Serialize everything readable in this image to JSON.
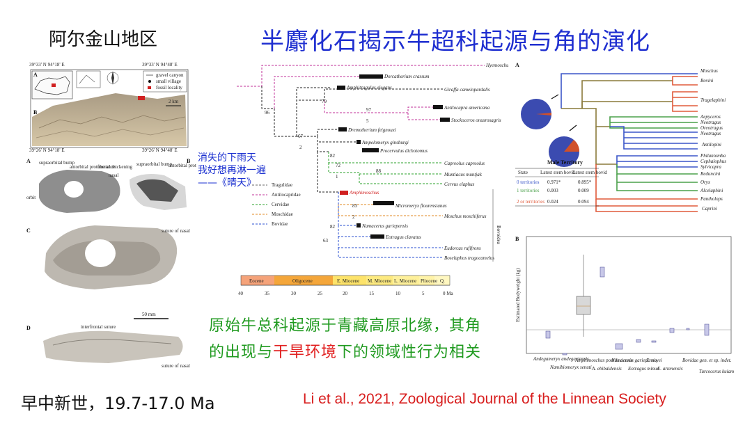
{
  "slide": {
    "region_label": "阿尔金山地区",
    "title": "半麝化石揭示牛超科起源与角的演化",
    "quote_lines": [
      "消失的下雨天",
      "我好想再淋一遍",
      "——《晴天》"
    ],
    "conclusion": {
      "line1": "原始牛总科起源于青藏高原北缘，其角",
      "line2_a": "的出现与",
      "line2_hl": "干旱环境",
      "line2_b": "下的领域性行为相关"
    },
    "age": "早中新世，19.7-17.0 Ma",
    "citation": "Li et al., 2021, Zoological Journal of the Linnean Society"
  },
  "map_panel": {
    "panel_A": "A",
    "panel_B": "B",
    "coord_tl": "39°33' N 94°18' E",
    "coord_tr": "39°33' N 94°48' E",
    "coord_bl": "39°26' N 94°18' E",
    "coord_br": "39°26' N 94°48' E",
    "legend": [
      "gravel canyon",
      "small village",
      "fossil locality"
    ],
    "scale": "2 km"
  },
  "skull_panel": {
    "labels": [
      "A",
      "B",
      "C",
      "D"
    ],
    "annotations": [
      "supraorbital bump",
      "antorbital protuberance",
      "frontal thickening",
      "nasal",
      "orbit",
      "supraorbital bump",
      "antorbital protuberance",
      "suture of nasal",
      "interfrontal suture",
      "suture of nasal"
    ],
    "scale": "50 mm"
  },
  "phylogeny": {
    "taxa": [
      "Hyemoschus aquaticus",
      "Dorcatherium crassum",
      "Amphitragulus elegans",
      "Giraffa camelopardalis",
      "Antilocapra americana",
      "Stockoceros onusrosagris",
      "Dremotherium feignouxi",
      "Ampelomeryx ginsburgi",
      "Procervulus dichotomus",
      "Capreolus capreolus",
      "Muntiacus muntjak",
      "Cervus elaphus",
      "Amphimoschus",
      "Micromeryx flourensianus",
      "Moschus moschiferus",
      "Namacerus gariepensis",
      "Eotragus clavatus",
      "Eudorcas rufifrons",
      "Boselaphus tragocamelus"
    ],
    "node_labels": [
      "96",
      "67",
      "2",
      "79",
      "97",
      "5",
      "72",
      "88",
      "1",
      "82",
      "83",
      "2",
      "82",
      "63"
    ],
    "legend": [
      {
        "name": "Tragulidae",
        "color": "#666666"
      },
      {
        "name": "Antilocapridae",
        "color": "#c0309a"
      },
      {
        "name": "Cervidae",
        "color": "#2aa02a"
      },
      {
        "name": "Moschidae",
        "color": "#e08a20"
      },
      {
        "name": "Bovidae",
        "color": "#2a4fd0"
      }
    ],
    "side_label": "Bovoidea",
    "timescale": {
      "epochs": [
        "Eocene",
        "Oligocene",
        "E. Miocene",
        "M. Miocene",
        "L. Miocene",
        "Pliocene",
        "Q."
      ],
      "ticks": [
        "40",
        "35",
        "30",
        "25",
        "20",
        "15",
        "10",
        "5",
        "0 Ma"
      ]
    }
  },
  "bovid_tree": {
    "panel": "A",
    "clades": [
      "Moschus",
      "Bovini",
      "Tragelaphini",
      "Aepyceros",
      "Neotragus",
      "Oreotragus",
      "Neotragus",
      "Antilopini",
      "Philantomba",
      "Cephalophus",
      "Sylvicapra",
      "Reduncini",
      "Oryx",
      "Alcelaphini",
      "Pantholops",
      "Caprini"
    ],
    "table": {
      "title": "Male Territory",
      "headers": [
        "State",
        "Latest stem bovid",
        "Latest stem bovid"
      ],
      "rows": [
        [
          "0 territories",
          "0.971*",
          "0.895*"
        ],
        [
          "1 territories",
          "0.003",
          "0.009"
        ],
        [
          "2 or territories",
          "0.024",
          "0.094"
        ]
      ]
    }
  },
  "boxplot": {
    "panel": "B",
    "ylabel": "Estimated Bodyweight (kg)",
    "categories": [
      "Andegameryx andegaviensis",
      "Namibiomeryx senuti",
      "Amphimoschus pontileviensis",
      "A. ebibaldensis",
      "Namacerus gariepensis",
      "Eotragus minus",
      "E. noyei",
      "E. artenensis",
      "Bovidae gen. et sp. indet.",
      "Turcocerus kuiamagaiensis"
    ]
  }
}
